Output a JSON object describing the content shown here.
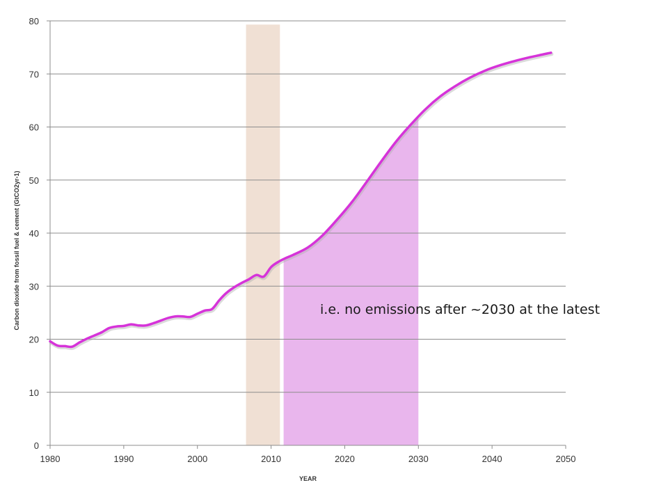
{
  "chart_data": {
    "type": "line",
    "title": "",
    "xlabel": "YEAR",
    "ylabel": "Carbon dioxide from fossil fuel & cement (GtCO2yr-1)",
    "xlim": [
      1980,
      2050
    ],
    "ylim": [
      0,
      80
    ],
    "x_ticks": [
      1980,
      1990,
      2000,
      2010,
      2020,
      2030,
      2040,
      2050
    ],
    "y_ticks": [
      0,
      10,
      20,
      30,
      40,
      50,
      60,
      70,
      80
    ],
    "grid": "horizontal",
    "annotation": "i.e. no emissions after ~2030 at the latest",
    "highlights": [
      {
        "x_start": 2006.6,
        "x_end": 2011.2,
        "y_top": 79.3,
        "color": "#f0e0d4"
      },
      {
        "x_start": 2011.7,
        "x_end": 2030,
        "y_top": "curve",
        "color": "#e8b2ec"
      }
    ],
    "series": [
      {
        "color": "#d633d9",
        "x": [
          1980,
          1981,
          1982,
          1983,
          1984,
          1985,
          1986,
          1987,
          1988,
          1989,
          1990,
          1991,
          1992,
          1993,
          1994,
          1995,
          1996,
          1997,
          1998,
          1999,
          2000,
          2001,
          2002,
          2003,
          2004,
          2005,
          2006,
          2007,
          2008,
          2009,
          2010,
          2011,
          2012,
          2013,
          2015,
          2017,
          2019,
          2021,
          2023,
          2025,
          2027,
          2029,
          2031,
          2033,
          2035,
          2037,
          2039,
          2041,
          2043,
          2045,
          2047,
          2048
        ],
        "values": [
          19.6,
          18.8,
          18.7,
          18.6,
          19.4,
          20.1,
          20.7,
          21.3,
          22.1,
          22.4,
          22.5,
          22.8,
          22.6,
          22.6,
          23.0,
          23.5,
          24.0,
          24.3,
          24.3,
          24.2,
          24.8,
          25.4,
          25.7,
          27.4,
          28.8,
          29.8,
          30.6,
          31.3,
          32.1,
          31.8,
          33.6,
          34.6,
          35.3,
          35.9,
          37.3,
          39.6,
          42.6,
          45.9,
          49.7,
          53.6,
          57.3,
          60.5,
          63.4,
          65.8,
          67.7,
          69.3,
          70.6,
          71.6,
          72.4,
          73.1,
          73.7,
          74.0
        ]
      }
    ]
  }
}
